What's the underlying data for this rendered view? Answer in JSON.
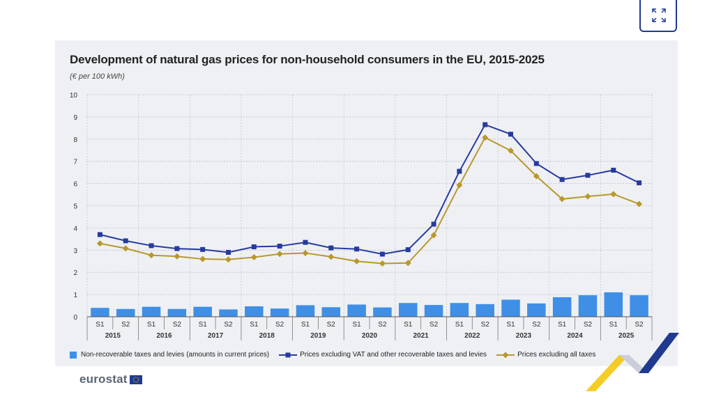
{
  "expand_icon": "expand-icon",
  "chart_data": {
    "type": "bar+line",
    "title": "Development of natural gas prices for non-household consumers in the EU, 2015-2025",
    "subtitle": "(€ per 100 kWh)",
    "ylim": [
      0,
      10
    ],
    "yticks": [
      "0",
      "1",
      "2",
      "3",
      "4",
      "5",
      "6",
      "7",
      "8",
      "9",
      "10"
    ],
    "semesters": [
      "S1",
      "S2",
      "S1",
      "S2",
      "S1",
      "S2",
      "S1",
      "S2",
      "S1",
      "S2",
      "S1",
      "S2",
      "S1",
      "S2",
      "S1",
      "S2",
      "S1",
      "S2",
      "S1",
      "S2",
      "S1",
      "S2"
    ],
    "years": [
      "2015",
      "2016",
      "2017",
      "2018",
      "2019",
      "2020",
      "2021",
      "2022",
      "2023",
      "2024",
      "2025"
    ],
    "grid": true,
    "legend_position": "bottom",
    "series": [
      {
        "name": "Non-recoverable taxes and levies (amounts in current prices)",
        "type": "bar",
        "color": "#3f8fe6",
        "values": [
          0.4,
          0.35,
          0.45,
          0.35,
          0.45,
          0.33,
          0.47,
          0.37,
          0.52,
          0.43,
          0.55,
          0.42,
          0.62,
          0.53,
          0.62,
          0.57,
          0.77,
          0.6,
          0.88,
          0.97,
          1.1,
          0.97
        ]
      },
      {
        "name": "Prices excluding VAT and other recoverable taxes and levies",
        "type": "line",
        "marker": "square",
        "color": "#273a9e",
        "values": [
          3.7,
          3.42,
          3.2,
          3.07,
          3.03,
          2.9,
          3.15,
          3.18,
          3.35,
          3.1,
          3.05,
          2.82,
          3.02,
          4.17,
          6.55,
          8.65,
          8.22,
          6.9,
          6.18,
          6.37,
          6.6,
          6.03
        ]
      },
      {
        "name": "Prices excluding all taxes",
        "type": "line",
        "marker": "diamond",
        "color": "#b9982b",
        "values": [
          3.3,
          3.08,
          2.77,
          2.72,
          2.6,
          2.58,
          2.68,
          2.83,
          2.87,
          2.7,
          2.5,
          2.4,
          2.42,
          3.67,
          5.93,
          8.07,
          7.48,
          6.33,
          5.3,
          5.42,
          5.52,
          5.08
        ]
      }
    ]
  },
  "legend": {
    "bar_label": "Non-recoverable taxes and levies (amounts in current prices)",
    "vat_label": "Prices excluding VAT and other recoverable taxes and levies",
    "all_label": "Prices excluding all taxes"
  },
  "footer": {
    "logo_text": "eurostat"
  }
}
